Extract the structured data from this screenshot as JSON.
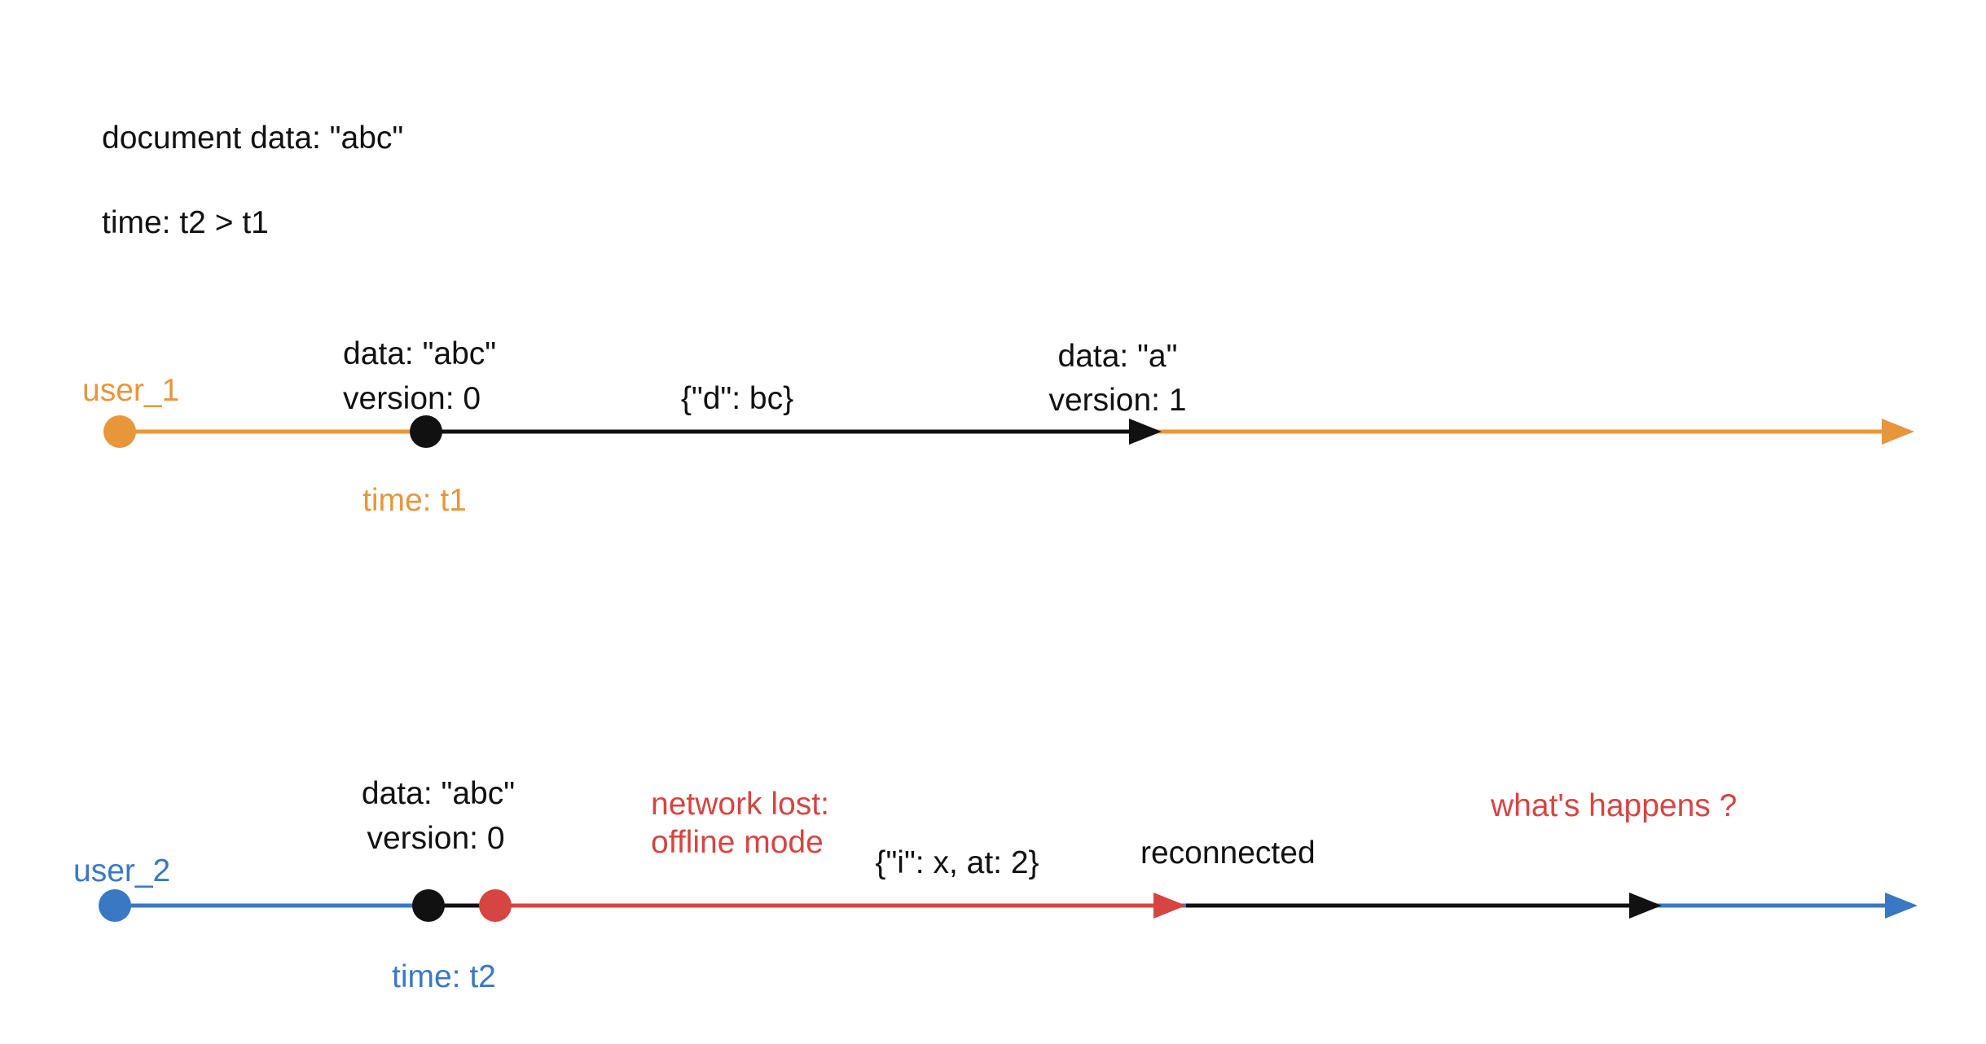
{
  "header": {
    "document_data": "document data: \"abc\"",
    "time_order": "time: t2 > t1"
  },
  "colors": {
    "user_1": "#E8963A",
    "user_2": "#3A78C4",
    "offline": "#D64541",
    "sync": "#111111"
  },
  "timeline_1": {
    "user_label": "user_1",
    "start_state": {
      "data": "data: \"abc\"",
      "version": "version: 0"
    },
    "start_time": "time: t1",
    "operation": "{\"d\": bc}",
    "end_state": {
      "data": "data: \"a\"",
      "version": "version: 1"
    }
  },
  "timeline_2": {
    "user_label": "user_2",
    "start_state": {
      "data": "data: \"abc\"",
      "version": "version: 0"
    },
    "start_time": "time: t2",
    "network_lost": "network lost:",
    "offline_mode": "offline mode",
    "operation": "{\"i\": x, at: 2}",
    "reconnected": "reconnected",
    "question": "what's happens ?"
  }
}
